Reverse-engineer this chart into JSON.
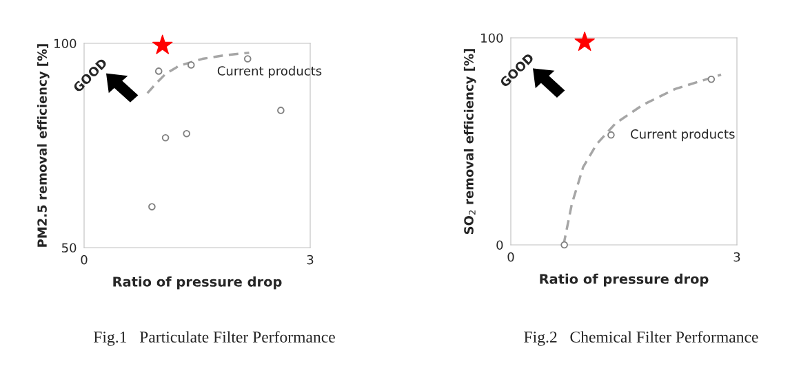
{
  "chart_data": [
    {
      "type": "scatter",
      "xlabel": "Ratio of pressure drop",
      "ylabel": "PM2.5 removal efficiency [%]",
      "xlim": [
        0,
        3
      ],
      "ylim": [
        50,
        100
      ],
      "xticks": [
        0,
        3
      ],
      "yticks": [
        50,
        100
      ],
      "grid": false,
      "series": [
        {
          "type": "line",
          "color": "#a6a6a6",
          "line_style": "dashed",
          "marker": "none",
          "x": [
            0.84,
            0.96,
            1.08,
            1.26,
            1.57,
            1.87,
            2.19
          ],
          "values": [
            87.8,
            90.3,
            92.5,
            94.5,
            96.2,
            97.1,
            97.7
          ]
        },
        {
          "type": "scatter",
          "color": "#808080",
          "marker": "circle",
          "x": [
            0.9,
            0.99,
            1.08,
            1.36,
            1.42,
            2.17,
            2.61
          ],
          "values": [
            60.0,
            93.2,
            76.9,
            77.9,
            94.7,
            96.2,
            83.6
          ]
        },
        {
          "type": "scatter",
          "color": "#ff0000",
          "marker": "star",
          "x": [
            1.04
          ],
          "values": [
            99.5
          ]
        }
      ],
      "annotations": [
        "Current products",
        "GOOD",
        "Fig.1   Particulate Filter Performance"
      ]
    },
    {
      "type": "scatter",
      "xlabel": "Ratio of pressure drop",
      "ylabel": "SO$_{2}$ removal efficiency [%]",
      "xlim": [
        0,
        3
      ],
      "ylim": [
        0,
        100
      ],
      "xticks": [
        0,
        3
      ],
      "yticks": [
        0,
        100
      ],
      "grid": false,
      "series": [
        {
          "type": "line",
          "color": "#a6a6a6",
          "line_style": "dashed",
          "marker": "none",
          "x": [
            0.7,
            0.81,
            0.96,
            1.14,
            1.39,
            1.75,
            2.18,
            2.79
          ],
          "values": [
            0,
            19.8,
            37.6,
            48.7,
            58.7,
            67.6,
            75.3,
            82.2
          ]
        },
        {
          "type": "scatter",
          "color": "#808080",
          "marker": "circle",
          "x": [
            0.71,
            1.33,
            2.66
          ],
          "values": [
            0,
            53.1,
            80.0
          ]
        },
        {
          "type": "scatter",
          "color": "#ff0000",
          "marker": "star",
          "x": [
            0.98
          ],
          "values": [
            97.9
          ]
        }
      ],
      "annotations": [
        "Current products",
        "GOOD",
        "Fig.2   Chemical Filter Performance"
      ]
    }
  ]
}
